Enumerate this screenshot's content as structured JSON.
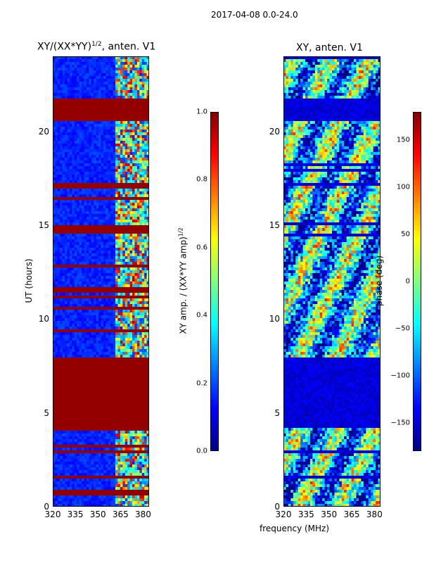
{
  "suptitle": "2017-04-08 0.0-24.0",
  "chart_data": [
    {
      "type": "heatmap",
      "panel": "left",
      "title": "XY/(XX*YY)^1/2, anten. V1",
      "title_main": "XY/(XX*YY)",
      "title_sup": "1/2",
      "title_tail": ", anten. V1",
      "xlabel": "",
      "ylabel": "UT (hours)",
      "xlim": [
        320,
        384
      ],
      "ylim": [
        0,
        24
      ],
      "xticks": [
        320,
        335,
        350,
        365,
        380
      ],
      "yticks": [
        0,
        5,
        10,
        15,
        20
      ],
      "colormap": "jet",
      "colorbar": {
        "label": "XY amp. / (XX*YY amp)^1/2",
        "label_main": "XY amp. / (XX*YY amp)",
        "label_sup": "1/2",
        "vmin": 0.0,
        "vmax": 1.0,
        "ticks": [
          "0.0",
          "0.2",
          "0.4",
          "0.6",
          "0.8",
          "1.0"
        ],
        "tick_values": [
          0.0,
          0.2,
          0.4,
          0.6,
          0.8,
          1.0
        ]
      },
      "description_bands_hours": [
        [
          20.5,
          21.7
        ],
        [
          14.6,
          14.8
        ],
        [
          4.0,
          8.0
        ]
      ]
    },
    {
      "type": "heatmap",
      "panel": "right",
      "title": "XY, anten. V1",
      "xlabel": "frequency (MHz)",
      "ylabel": "",
      "xlim": [
        320,
        384
      ],
      "ylim": [
        0,
        24
      ],
      "xticks": [
        320,
        335,
        350,
        365,
        380
      ],
      "yticks": [
        0,
        5,
        10,
        15,
        20
      ],
      "colormap": "jet",
      "colorbar": {
        "label": "phase (deg)",
        "vmin": -180,
        "vmax": 180,
        "ticks": [
          "150",
          "100",
          "50",
          "0",
          "−50",
          "−100",
          "−150"
        ],
        "tick_values": [
          150,
          100,
          50,
          0,
          -50,
          -100,
          -150
        ]
      }
    }
  ]
}
